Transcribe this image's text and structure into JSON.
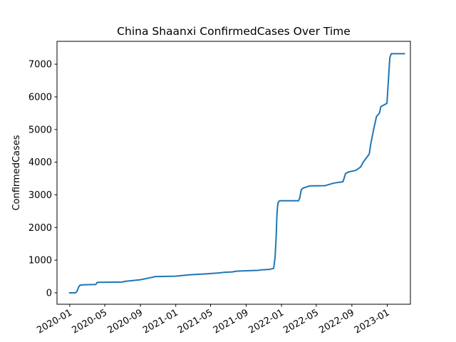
{
  "chart_data": {
    "type": "line",
    "title": "China Shaanxi ConfirmedCases Over Time",
    "xlabel": "",
    "ylabel": "ConfirmedCases",
    "xlim": [
      "2019-11-18",
      "2023-03-22"
    ],
    "ylim": [
      -350,
      7700
    ],
    "grid": false,
    "color": "#1f77b4",
    "x_ticks": [
      "2020-01",
      "2020-05",
      "2020-09",
      "2021-01",
      "2021-05",
      "2021-09",
      "2022-01",
      "2022-05",
      "2022-09",
      "2023-01"
    ],
    "y_ticks": [
      0,
      1000,
      2000,
      3000,
      4000,
      5000,
      6000,
      7000
    ],
    "series": [
      {
        "x": [
          "2020-01-01",
          "2020-01-20",
          "2020-01-25",
          "2020-02-01",
          "2020-02-05",
          "2020-02-15",
          "2020-03-31",
          "2020-04-05",
          "2020-04-10",
          "2020-06-30",
          "2020-07-10",
          "2020-09-01",
          "2020-10-15",
          "2020-10-20",
          "2020-12-31",
          "2021-02-15",
          "2021-04-15",
          "2021-05-15",
          "2021-06-01",
          "2021-06-15",
          "2021-07-15",
          "2021-08-01",
          "2021-10-15",
          "2021-10-20",
          "2021-11-20",
          "2021-12-05",
          "2021-12-10",
          "2021-12-14",
          "2021-12-16",
          "2021-12-18",
          "2021-12-20",
          "2021-12-23",
          "2021-12-26",
          "2021-12-29",
          "2022-01-02",
          "2022-01-06",
          "2022-01-15",
          "2022-03-01",
          "2022-03-05",
          "2022-03-10",
          "2022-03-15",
          "2022-03-31",
          "2022-04-10",
          "2022-05-31",
          "2022-06-15",
          "2022-07-01",
          "2022-08-01",
          "2022-08-05",
          "2022-08-10",
          "2022-08-20",
          "2022-09-15",
          "2022-10-01",
          "2022-10-10",
          "2022-10-31",
          "2022-11-05",
          "2022-11-15",
          "2022-11-25",
          "2022-12-05",
          "2022-12-10",
          "2022-12-31",
          "2023-01-10",
          "2023-01-15",
          "2023-03-01"
        ],
        "y": [
          0,
          0,
          30,
          180,
          230,
          245,
          255,
          320,
          320,
          330,
          350,
          400,
          480,
          495,
          510,
          550,
          580,
          600,
          610,
          625,
          640,
          665,
          690,
          700,
          715,
          750,
          1100,
          1800,
          2350,
          2600,
          2750,
          2800,
          2815,
          2820,
          2820,
          2820,
          2820,
          2820,
          2900,
          3150,
          3200,
          3250,
          3275,
          3280,
          3320,
          3360,
          3400,
          3500,
          3650,
          3700,
          3750,
          3850,
          4000,
          4250,
          4550,
          5000,
          5400,
          5500,
          5700,
          5800,
          7200,
          7320,
          7320
        ]
      }
    ]
  }
}
